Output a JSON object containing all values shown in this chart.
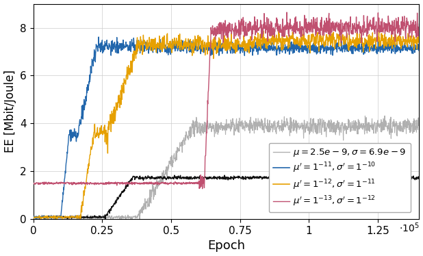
{
  "xlabel": "Epoch",
  "ylabel": "EE [Mbit/Joule]",
  "xlim": [
    0,
    140000
  ],
  "ylim": [
    0,
    9
  ],
  "xticks": [
    0,
    25000,
    50000,
    75000,
    100000,
    125000
  ],
  "xtick_labels": [
    "0",
    "0.25",
    "0.5",
    "0.75",
    "1",
    "1.25"
  ],
  "yticks": [
    0,
    2,
    4,
    6,
    8
  ],
  "colors": {
    "gray": "#b0b0b0",
    "blue": "#2166ac",
    "gold": "#e6a000",
    "black": "#111111",
    "pink": "#c05070"
  },
  "legend_labels": [
    "$\\mu = 2.5e-9, \\sigma = 6.9e-9$",
    "$\\mu' = 1^{-11}, \\sigma' = 1^{-10}$",
    "$\\mu' = 1^{-12}, \\sigma' = 1^{-11}$",
    "$\\mu' = 1^{-13}, \\sigma' = 1^{-12}$"
  ],
  "seed": 1234,
  "n_points": 1400,
  "background_color": "#ffffff"
}
